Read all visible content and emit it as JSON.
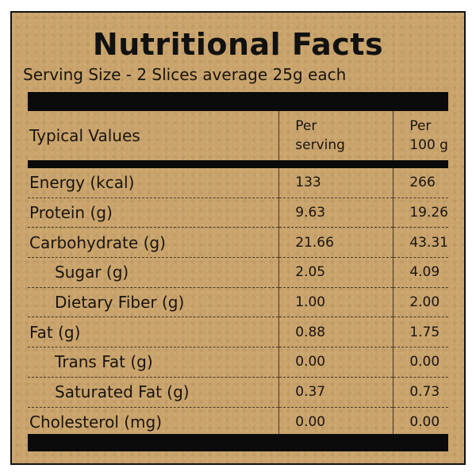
{
  "label": {
    "title": "Nutritional Facts",
    "serving_size": "Serving Size - 2 Slices average 25g each"
  },
  "table": {
    "headers": {
      "name": "Typical Values",
      "per_serving_line1": "Per",
      "per_serving_line2": "serving",
      "per_100g_line1": "Per",
      "per_100g_line2": "100 g"
    },
    "rows": [
      {
        "name": "Energy (kcal)",
        "per_serving": "133",
        "per_100g": "266",
        "indent": false
      },
      {
        "name": "Protein (g)",
        "per_serving": "9.63",
        "per_100g": "19.26",
        "indent": false
      },
      {
        "name": "Carbohydrate (g)",
        "per_serving": "21.66",
        "per_100g": "43.31",
        "indent": false
      },
      {
        "name": "Sugar (g)",
        "per_serving": "2.05",
        "per_100g": "4.09",
        "indent": true
      },
      {
        "name": "Dietary Fiber (g)",
        "per_serving": "1.00",
        "per_100g": "2.00",
        "indent": true
      },
      {
        "name": "Fat (g)",
        "per_serving": "0.88",
        "per_100g": "1.75",
        "indent": false
      },
      {
        "name": "Trans Fat (g)",
        "per_serving": "0.00",
        "per_100g": "0.00",
        "indent": true
      },
      {
        "name": "Saturated Fat (g)",
        "per_serving": "0.37",
        "per_100g": "0.73",
        "indent": true
      },
      {
        "name": "Cholesterol (mg)",
        "per_serving": "0.00",
        "per_100g": "0.00",
        "indent": false
      }
    ]
  },
  "colors": {
    "background": "#c9a36a",
    "ink": "#111111"
  }
}
